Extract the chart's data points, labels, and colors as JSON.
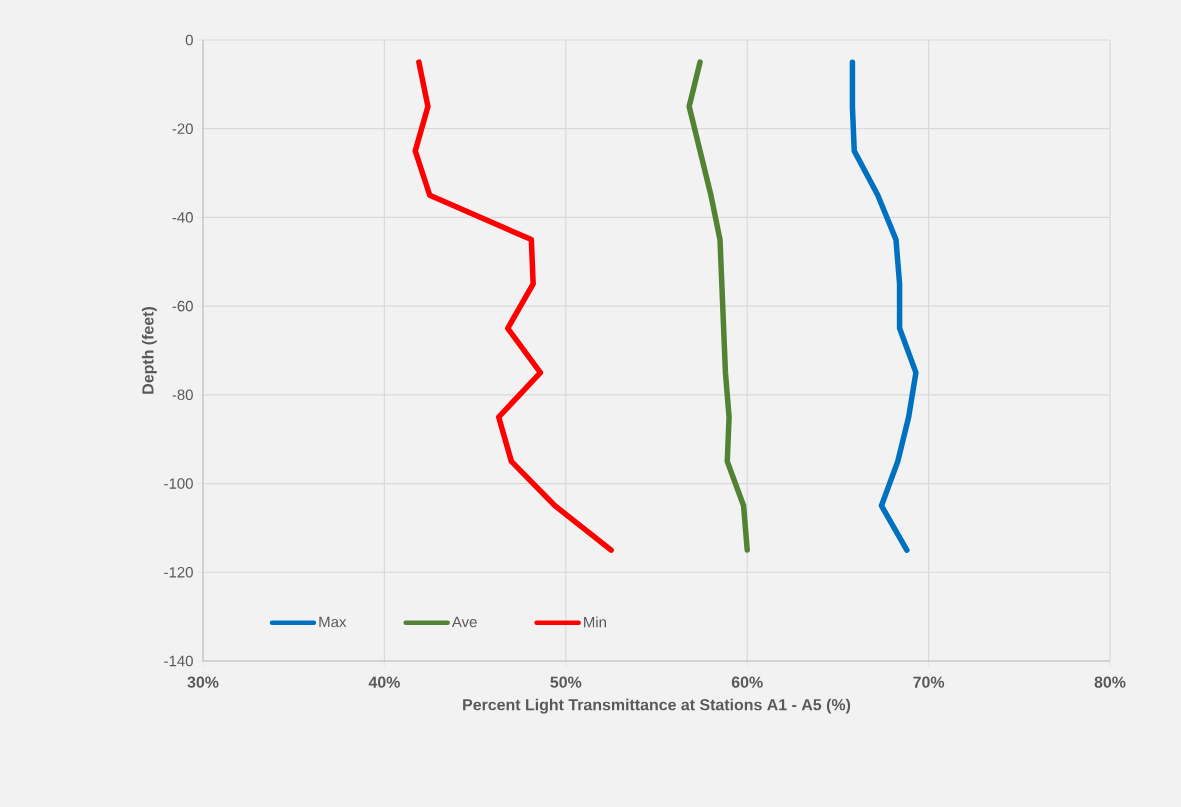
{
  "chart_data": {
    "type": "line",
    "xlabel": "Percent Light Transmittance at Stations A1 - A5 (%)",
    "ylabel": "Depth (feet)",
    "xlim": [
      30,
      80
    ],
    "xticks": [
      {
        "value": 30,
        "label": "30%"
      },
      {
        "value": 40,
        "label": "40%"
      },
      {
        "value": 50,
        "label": "50%"
      },
      {
        "value": 60,
        "label": "60%"
      },
      {
        "value": 70,
        "label": "70%"
      },
      {
        "value": 80,
        "label": "80%"
      }
    ],
    "ylim": [
      -140,
      0
    ],
    "yticks": [
      -140,
      -120,
      -100,
      -80,
      -60,
      -40,
      -20,
      0
    ],
    "grid": true,
    "legend": "bottom left",
    "marker": "none",
    "line_style": "solid",
    "series": [
      {
        "name": "Max",
        "color": "#0070c0",
        "x": [
          65.8,
          65.8,
          65.9,
          67.2,
          68.2,
          68.4,
          68.4,
          69.3,
          68.9,
          68.3,
          67.4,
          68.8
        ],
        "values": [
          -5,
          -15,
          -25,
          -35,
          -45,
          -55,
          -65,
          -75,
          -85,
          -95,
          -105,
          -115
        ]
      },
      {
        "name": "Ave",
        "color": "#548235",
        "x": [
          57.4,
          56.8,
          57.4,
          58.0,
          58.5,
          58.6,
          58.7,
          58.8,
          59.0,
          58.9,
          59.8,
          60.0
        ],
        "values": [
          -5,
          -15,
          -25,
          -35,
          -45,
          -55,
          -65,
          -75,
          -85,
          -95,
          -105,
          -115
        ]
      },
      {
        "name": "Min",
        "color": "#ff0000",
        "x": [
          41.9,
          42.4,
          41.7,
          42.5,
          48.1,
          48.2,
          46.8,
          48.6,
          46.3,
          47.0,
          49.4,
          52.5
        ],
        "values": [
          -5,
          -15,
          -25,
          -35,
          -45,
          -55,
          -65,
          -75,
          -85,
          -95,
          -105,
          -115
        ]
      }
    ]
  }
}
